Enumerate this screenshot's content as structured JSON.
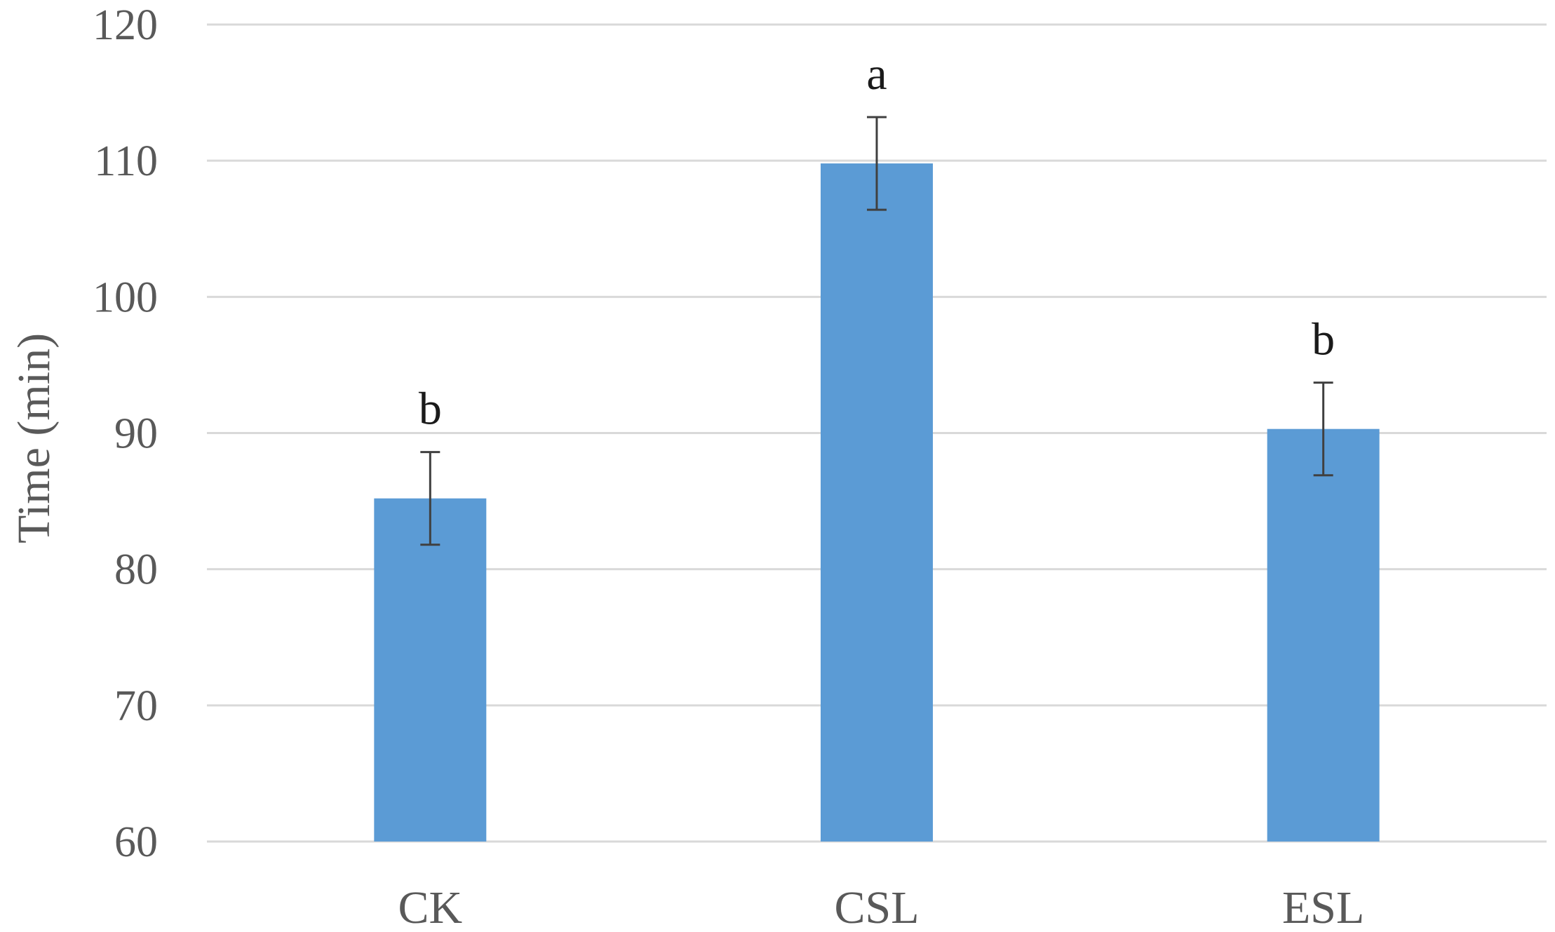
{
  "chart_data": {
    "type": "bar",
    "categories": [
      "CK",
      "CSL",
      "ESL"
    ],
    "values": [
      85.2,
      109.8,
      90.3
    ],
    "errors": [
      3.4,
      3.4,
      3.4
    ],
    "significance": [
      "b",
      "a",
      "b"
    ],
    "title": "",
    "xlabel": "",
    "ylabel": "Time (min)",
    "ylim": [
      60,
      120
    ],
    "yticks": [
      60,
      70,
      80,
      90,
      100,
      110,
      120
    ],
    "grid": true,
    "legend": "none",
    "bar_color": "#5b9bd5"
  }
}
